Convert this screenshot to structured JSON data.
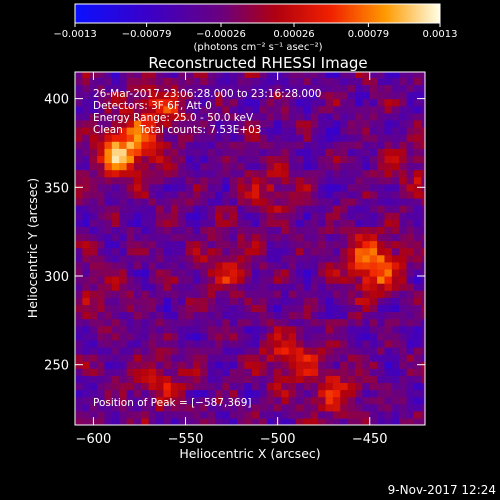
{
  "chart_data": {
    "type": "heatmap",
    "title": "Reconstructed RHESSI Image",
    "xlabel": "Heliocentric X (arcsec)",
    "ylabel": "Heliocentric Y (arcsec)",
    "xlim": [
      -610,
      -420
    ],
    "ylim": [
      216,
      415
    ],
    "x_ticks": [
      -600,
      -550,
      -500,
      -450
    ],
    "y_ticks": [
      250,
      300,
      350,
      400
    ],
    "x_tick_labels": [
      "−600",
      "−550",
      "−500",
      "−450"
    ],
    "y_tick_labels": [
      "250",
      "300",
      "350",
      "400"
    ],
    "pixel_size_arcsec": 4,
    "colorbar": {
      "range": [
        -0.0013,
        0.0013
      ],
      "ticks": [
        -0.0013,
        -0.00079,
        -0.00026,
        0.00026,
        0.00079,
        0.0013
      ],
      "tick_labels": [
        "−0.0013",
        "−0.00079",
        "−0.00026",
        "0.00026",
        "0.00079",
        "0.0013"
      ],
      "unit_label": "(photons cm⁻² s⁻¹ asec⁻²)"
    },
    "colors": {
      "low": "#0000ff",
      "mid_low": "#5a00b0",
      "mid": "#b00010",
      "mid_high": "#ff7a00",
      "high": "#ffffa0"
    },
    "sources": [
      {
        "x": -585,
        "y": 369,
        "amplitude": 0.0013
      },
      {
        "x": -566,
        "y": 392,
        "amplitude": 0.0007
      },
      {
        "x": -450,
        "y": 305,
        "amplitude": 0.00115
      },
      {
        "x": -530,
        "y": 303,
        "amplitude": 0.0006
      },
      {
        "x": -505,
        "y": 348,
        "amplitude": 0.0005
      },
      {
        "x": -495,
        "y": 252,
        "amplitude": 0.00075
      },
      {
        "x": -470,
        "y": 232,
        "amplitude": 0.0006
      },
      {
        "x": -565,
        "y": 238,
        "amplitude": 0.0005
      },
      {
        "x": -430,
        "y": 360,
        "amplitude": 0.0004
      },
      {
        "x": -600,
        "y": 290,
        "amplitude": 0.0003
      }
    ],
    "annotations": {
      "time_range": "26-Mar-2017 23:06:28.000 to 23:16:28.000",
      "detectors": "Detectors: 3F 6F, Att 0",
      "energy": "Energy Range: 25.0 - 50.0 keV",
      "method": "Clean     Total counts: 7.53E+03",
      "peak": "Position of Peak = [−587,369]"
    }
  },
  "footer": {
    "timestamp": "9-Nov-2017 12:24"
  }
}
